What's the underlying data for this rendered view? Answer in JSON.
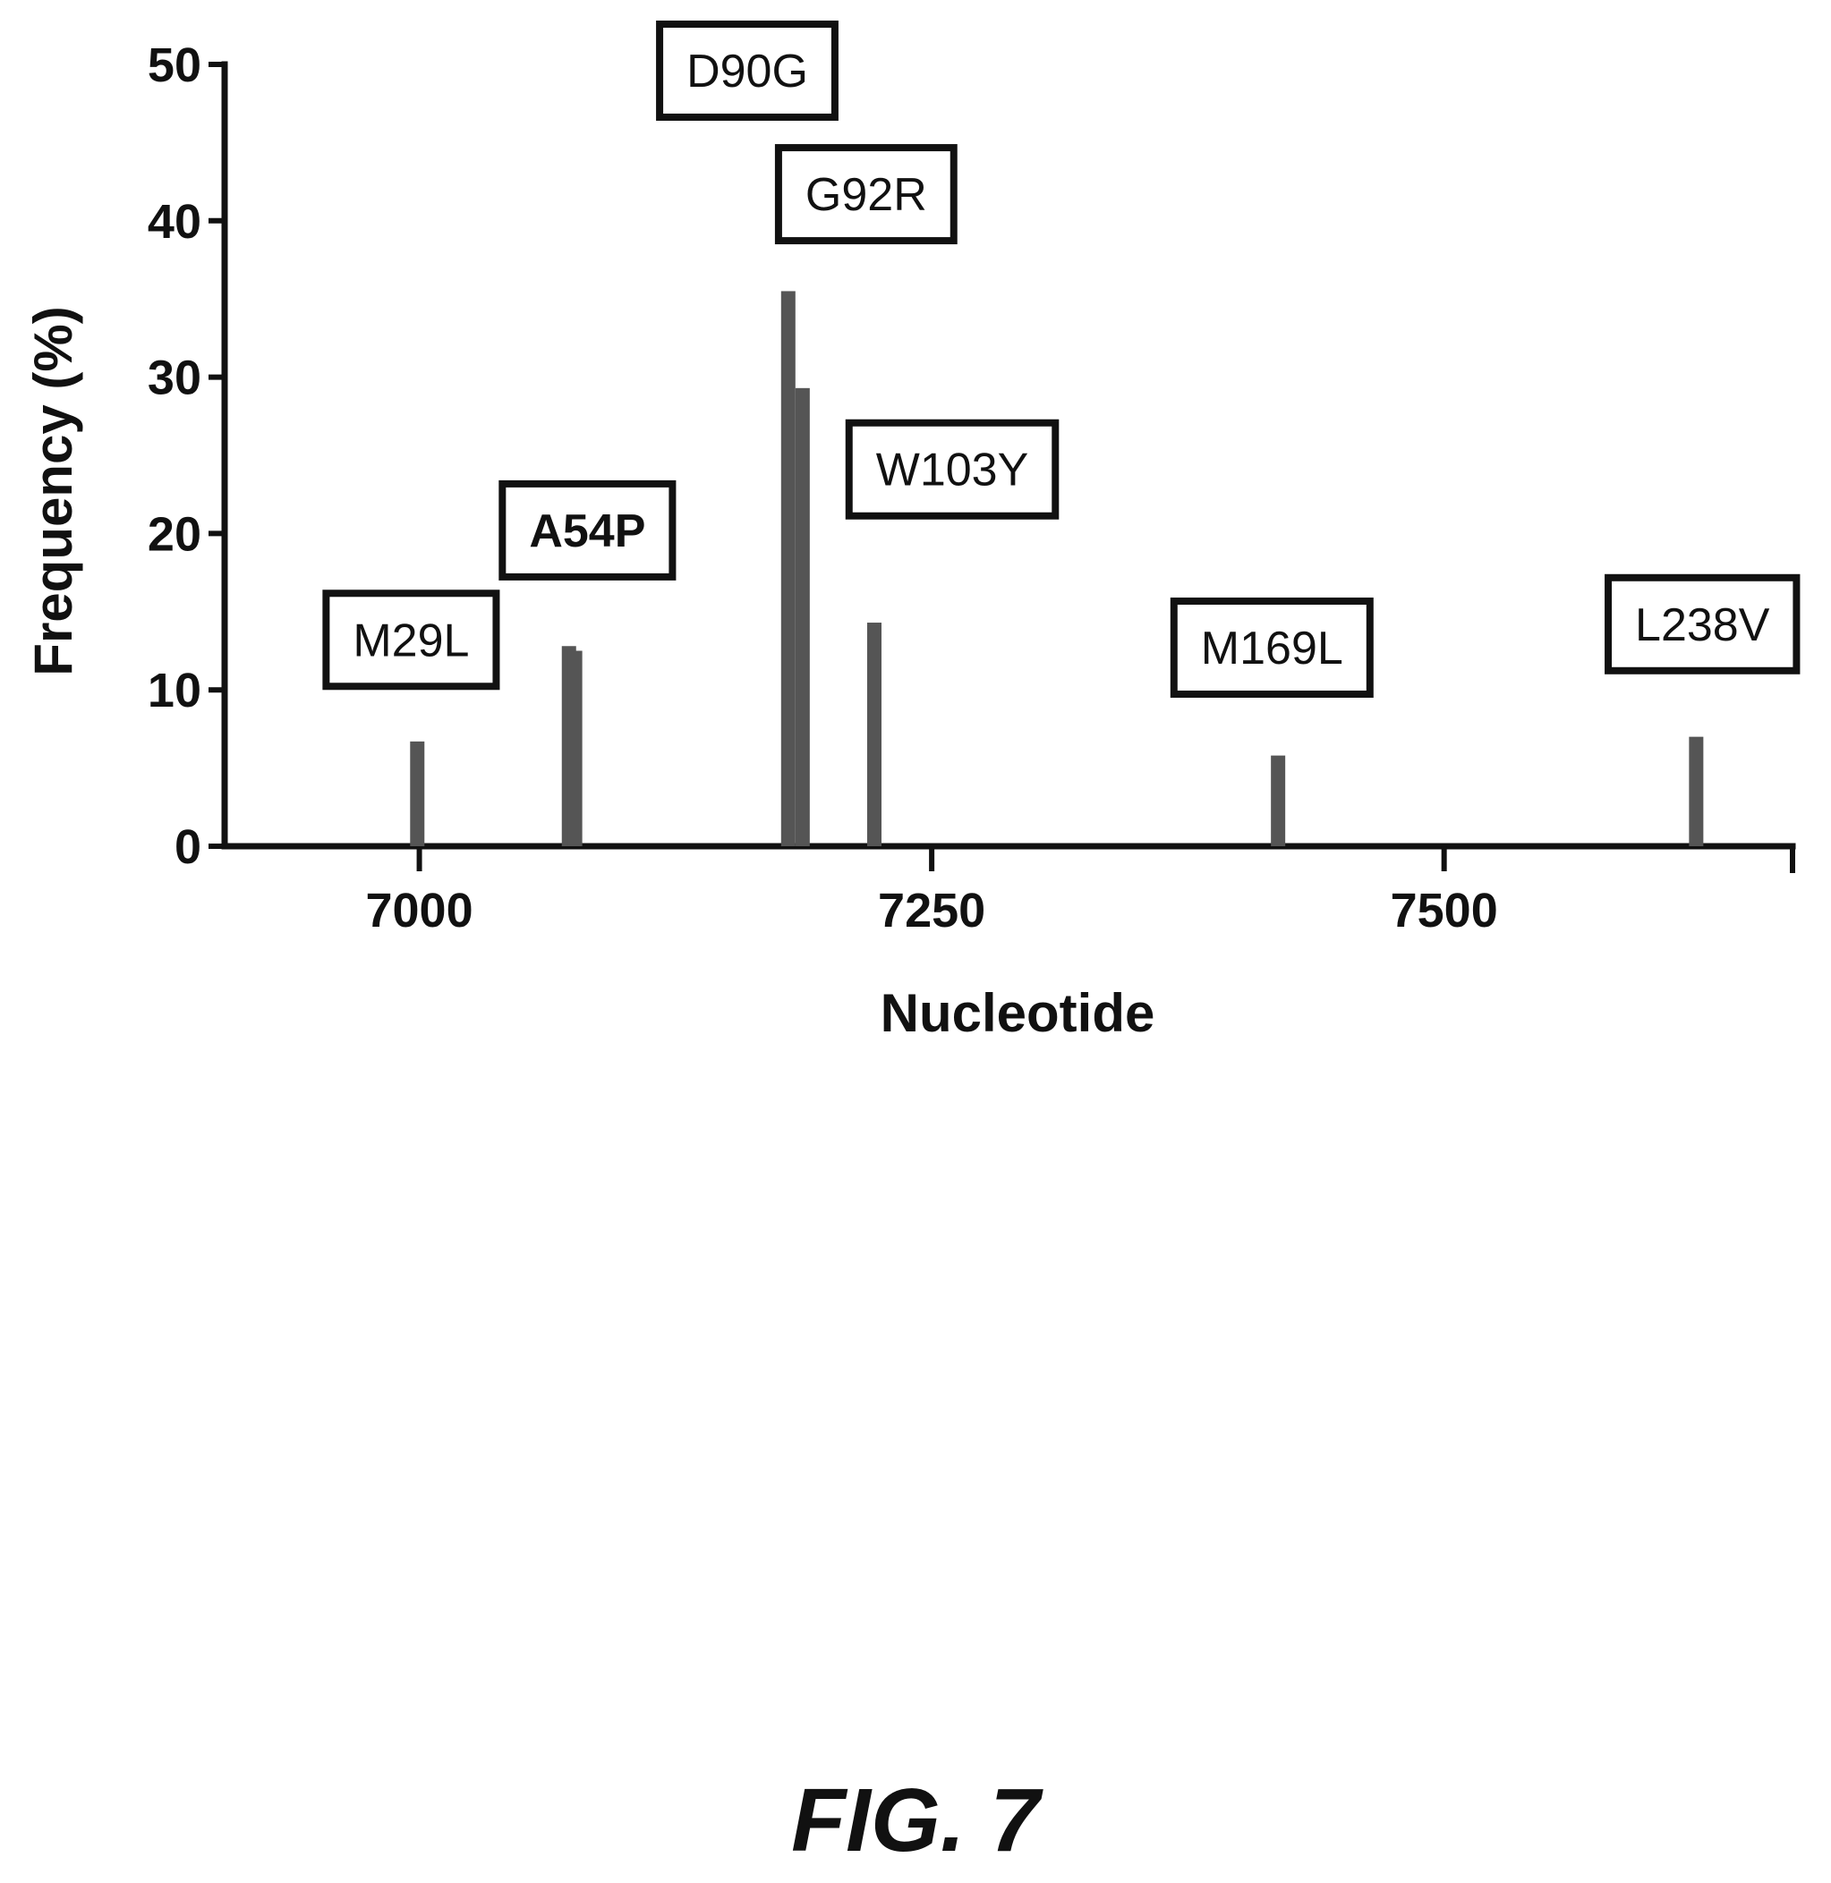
{
  "chart_data": {
    "type": "bar",
    "xlabel": "Nucleotide",
    "ylabel": "Frequency (%)",
    "xlim": [
      6905,
      7670
    ],
    "ylim": [
      0,
      50
    ],
    "x_ticks": [
      7000,
      7250,
      7500
    ],
    "y_ticks": [
      0,
      10,
      20,
      30,
      40,
      50
    ],
    "bars": [
      {
        "x": 6999,
        "value": 6.7
      },
      {
        "x": 7073,
        "value": 12.8
      },
      {
        "x": 7076,
        "value": 12.5
      },
      {
        "x": 7180,
        "value": 35.5
      },
      {
        "x": 7187,
        "value": 29.3
      },
      {
        "x": 7222,
        "value": 14.3
      },
      {
        "x": 7419,
        "value": 5.8
      },
      {
        "x": 7623,
        "value": 7.0
      }
    ],
    "annotations": [
      {
        "text": "M29L",
        "x": 6996,
        "y": 13.2,
        "bold": false
      },
      {
        "text": "A54P",
        "x": 7082,
        "y": 20.2,
        "bold": true
      },
      {
        "text": "D90G",
        "x": 7160,
        "y": 49.6,
        "bold": false
      },
      {
        "text": "G92R",
        "x": 7218,
        "y": 41.7,
        "bold": false
      },
      {
        "text": "W103Y",
        "x": 7260,
        "y": 24.1,
        "bold": false
      },
      {
        "text": "M169L",
        "x": 7416,
        "y": 12.7,
        "bold": false
      },
      {
        "text": "L238V",
        "x": 7626,
        "y": 14.2,
        "bold": false
      }
    ]
  },
  "figure_caption": "FIG. 7"
}
